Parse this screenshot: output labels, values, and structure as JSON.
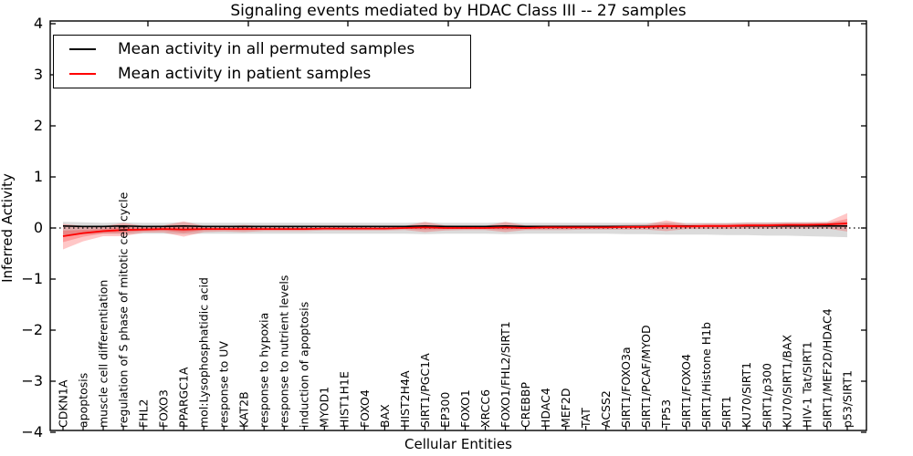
{
  "title": "Signaling events mediated by HDAC Class III -- 27 samples",
  "legend": {
    "entries": [
      {
        "label": "Mean activity in all permuted samples",
        "color": "#000000"
      },
      {
        "label": "Mean activity in patient samples",
        "color": "#ff0000"
      }
    ]
  },
  "axes": {
    "xlabel": "Cellular Entities",
    "ylabel": "Inferred Activity"
  },
  "colors": {
    "patient_line": "#ff0000",
    "permuted_line": "#000000",
    "patient_band": "rgba(255,0,0,0.22)",
    "permuted_band": "rgba(0,0,0,0.14)",
    "frame": "#000000",
    "background": "#ffffff"
  },
  "chart_data": {
    "type": "line",
    "title": "Signaling events mediated by HDAC Class III -- 27 samples",
    "xlabel": "Cellular Entities",
    "ylabel": "Inferred Activity",
    "ylim": [
      -4,
      4
    ],
    "yticks": [
      4,
      3,
      2,
      1,
      0,
      -1,
      -2,
      -3,
      -4
    ],
    "zero_line_style": "dotted",
    "legend_position": "upper left",
    "grid": false,
    "categories": [
      "CDKN1A",
      "apoptosis",
      "muscle cell differentiation",
      "regulation of S phase of mitotic cell cycle",
      "FHL2",
      "FOXO3",
      "PPARGC1A",
      "mol:Lysophosphatidic acid",
      "response to UV",
      "KAT2B",
      "response to hypoxia",
      "response to nutrient levels",
      "induction of apoptosis",
      "MYOD1",
      "HIST1H1E",
      "FOXO4",
      "BAX",
      "HIST2H4A",
      "SIRT1/PGC1A",
      "EP300",
      "FOXO1",
      "XRCC6",
      "FOXO1/FHL2/SIRT1",
      "CREBBP",
      "HDAC4",
      "MEF2D",
      "TAT",
      "ACSS2",
      "SIRT1/FOXO3a",
      "SIRT1/PCAF/MYOD",
      "TP53",
      "SIRT1/FOXO4",
      "SIRT1/Histone H1b",
      "SIRT1",
      "KU70/SIRT1",
      "SIRT1/p300",
      "KU70/SIRT1/BAX",
      "HIV-1 Tat/SIRT1",
      "SIRT1/MEF2D/HDAC4",
      "p53/SIRT1"
    ],
    "series": [
      {
        "name": "Mean activity in all permuted samples",
        "color": "#000000",
        "values": [
          0.04,
          0.03,
          0.03,
          0.04,
          0.03,
          0.03,
          0.04,
          0.03,
          0.03,
          0.03,
          0.03,
          0.03,
          0.03,
          0.03,
          0.03,
          0.03,
          0.03,
          0.03,
          0.04,
          0.03,
          0.03,
          0.03,
          0.04,
          0.03,
          0.03,
          0.03,
          0.03,
          0.03,
          0.03,
          0.03,
          0.04,
          0.04,
          0.04,
          0.04,
          0.04,
          0.04,
          0.04,
          0.04,
          0.04,
          0.04
        ],
        "band_upper": [
          0.12,
          0.11,
          0.1,
          0.11,
          0.1,
          0.1,
          0.11,
          0.1,
          0.1,
          0.1,
          0.1,
          0.1,
          0.1,
          0.1,
          0.1,
          0.1,
          0.1,
          0.1,
          0.11,
          0.1,
          0.1,
          0.1,
          0.11,
          0.1,
          0.1,
          0.1,
          0.1,
          0.1,
          0.1,
          0.1,
          0.11,
          0.1,
          0.1,
          0.1,
          0.11,
          0.11,
          0.11,
          0.11,
          0.11,
          0.12
        ],
        "band_lower": [
          -0.14,
          -0.12,
          -0.11,
          -0.12,
          -0.11,
          -0.11,
          -0.12,
          -0.11,
          -0.11,
          -0.11,
          -0.11,
          -0.11,
          -0.11,
          -0.11,
          -0.11,
          -0.11,
          -0.11,
          -0.11,
          -0.12,
          -0.11,
          -0.11,
          -0.11,
          -0.12,
          -0.11,
          -0.11,
          -0.11,
          -0.11,
          -0.11,
          -0.12,
          -0.12,
          -0.13,
          -0.13,
          -0.13,
          -0.14,
          -0.14,
          -0.15,
          -0.15,
          -0.16,
          -0.17,
          -0.18
        ]
      },
      {
        "name": "Mean activity in patient samples",
        "color": "#ff0000",
        "values": [
          -0.16,
          -0.1,
          -0.06,
          -0.04,
          -0.03,
          -0.02,
          -0.03,
          -0.02,
          -0.02,
          -0.02,
          -0.02,
          -0.02,
          -0.02,
          -0.01,
          -0.01,
          -0.01,
          -0.01,
          0.0,
          0.01,
          0.0,
          0.0,
          0.0,
          0.01,
          0.0,
          0.01,
          0.01,
          0.01,
          0.01,
          0.02,
          0.02,
          0.04,
          0.03,
          0.04,
          0.04,
          0.05,
          0.05,
          0.06,
          0.06,
          0.07,
          0.09
        ],
        "band_upper": [
          0.08,
          0.04,
          0.03,
          0.1,
          0.04,
          0.05,
          0.13,
          0.04,
          0.03,
          0.06,
          0.03,
          0.03,
          0.03,
          0.03,
          0.03,
          0.03,
          0.03,
          0.04,
          0.12,
          0.05,
          0.04,
          0.04,
          0.12,
          0.05,
          0.05,
          0.05,
          0.05,
          0.05,
          0.06,
          0.07,
          0.15,
          0.08,
          0.09,
          0.09,
          0.1,
          0.1,
          0.11,
          0.11,
          0.12,
          0.29
        ],
        "band_lower": [
          -0.42,
          -0.26,
          -0.16,
          -0.16,
          -0.09,
          -0.09,
          -0.17,
          -0.08,
          -0.07,
          -0.08,
          -0.06,
          -0.06,
          -0.06,
          -0.05,
          -0.05,
          -0.05,
          -0.05,
          -0.04,
          -0.08,
          -0.05,
          -0.04,
          -0.04,
          -0.08,
          -0.04,
          -0.04,
          -0.04,
          -0.03,
          -0.03,
          -0.03,
          -0.03,
          -0.06,
          -0.02,
          -0.02,
          -0.02,
          -0.01,
          -0.01,
          -0.01,
          -0.01,
          -0.01,
          -0.07
        ]
      }
    ]
  }
}
